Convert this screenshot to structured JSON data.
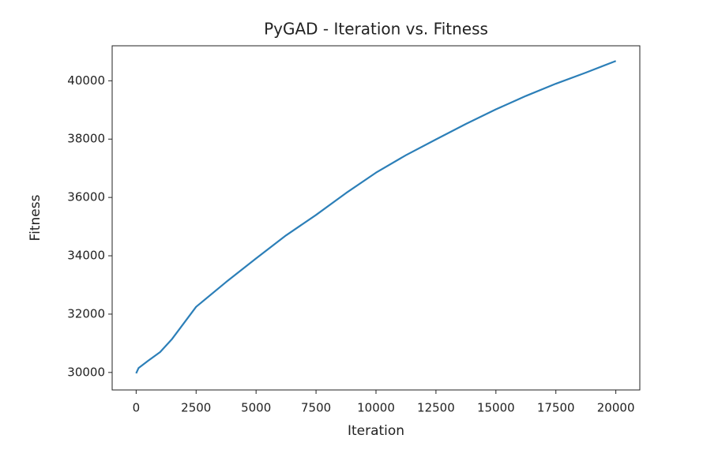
{
  "chart_data": {
    "type": "line",
    "title": "PyGAD - Iteration vs. Fitness",
    "xlabel": "Iteration",
    "ylabel": "Fitness",
    "x": [
      0,
      100,
      500,
      1000,
      1500,
      2500,
      3750,
      5000,
      6250,
      7500,
      8750,
      10000,
      11250,
      12500,
      13750,
      15000,
      16250,
      17500,
      18750,
      20000
    ],
    "values": [
      29970,
      30150,
      30400,
      30700,
      31150,
      32250,
      33100,
      33910,
      34700,
      35400,
      36150,
      36850,
      37450,
      37990,
      38520,
      39020,
      39480,
      39900,
      40280,
      40680
    ],
    "color": "#2c7fb8",
    "xlim": [
      -1000,
      21000
    ],
    "ylim": [
      29400,
      41200
    ],
    "xticks": [
      0,
      2500,
      5000,
      7500,
      10000,
      12500,
      15000,
      17500,
      20000
    ],
    "yticks": [
      30000,
      32000,
      34000,
      36000,
      38000,
      40000
    ],
    "grid": false
  }
}
